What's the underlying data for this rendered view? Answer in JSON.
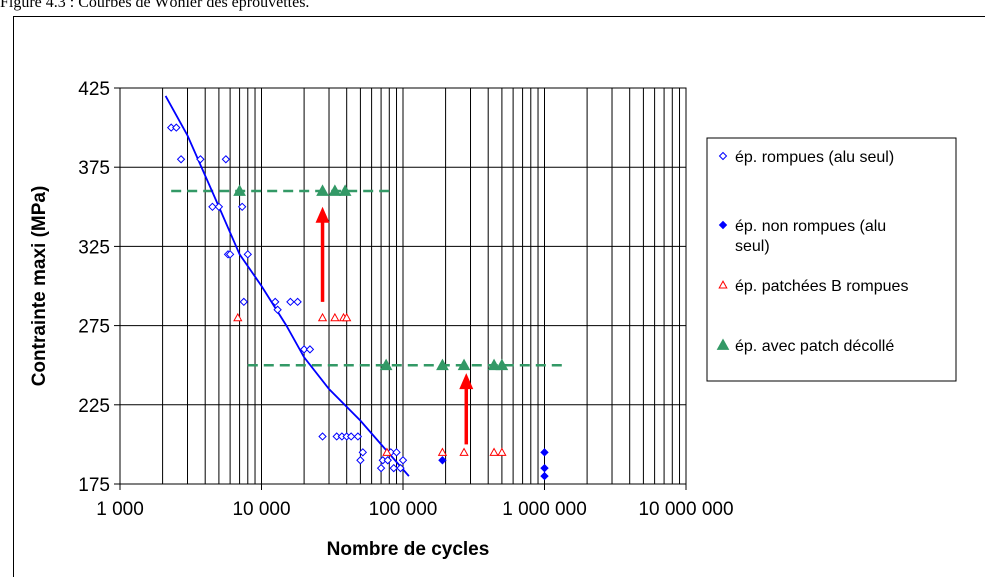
{
  "caption": "Figure 4.3 : Courbes de Wöhler des éprouvettes.",
  "chart_data": {
    "type": "scatter",
    "xlabel": "Nombre de cycles",
    "ylabel": "Contrainte maxi (MPa)",
    "x_scale": "log",
    "xlim": [
      1000,
      10000000
    ],
    "ylim": [
      175,
      425
    ],
    "y_ticks": [
      175,
      225,
      275,
      325,
      375,
      425
    ],
    "x_tick_labels": [
      "1 000",
      "10 000",
      "100 000",
      "1 000 000",
      "10 000 000"
    ],
    "grid": true,
    "legend_position": "right",
    "series": [
      {
        "name": "ép. rompues (alu seul)",
        "marker": "open-diamond",
        "color": "#0000ff",
        "points": [
          [
            2300,
            400
          ],
          [
            2500,
            400
          ],
          [
            2700,
            380
          ],
          [
            3700,
            380
          ],
          [
            4500,
            350
          ],
          [
            5000,
            350
          ],
          [
            5600,
            380
          ],
          [
            5800,
            320
          ],
          [
            6000,
            320
          ],
          [
            7300,
            350
          ],
          [
            7500,
            290
          ],
          [
            8000,
            320
          ],
          [
            12500,
            290
          ],
          [
            13000,
            285
          ],
          [
            16000,
            290
          ],
          [
            18000,
            290
          ],
          [
            20000,
            260
          ],
          [
            22000,
            260
          ],
          [
            27000,
            205
          ],
          [
            34000,
            205
          ],
          [
            37000,
            205
          ],
          [
            40000,
            205
          ],
          [
            43000,
            205
          ],
          [
            48000,
            205
          ],
          [
            50000,
            190
          ],
          [
            52000,
            195
          ],
          [
            70000,
            185
          ],
          [
            72000,
            190
          ],
          [
            78000,
            190
          ],
          [
            82000,
            195
          ],
          [
            86000,
            185
          ],
          [
            90000,
            195
          ],
          [
            96000,
            185
          ],
          [
            100000,
            190
          ]
        ]
      },
      {
        "name": "ép. non rompues (alu seul)",
        "marker": "filled-diamond",
        "color": "#0000ff",
        "points": [
          [
            190000,
            190
          ],
          [
            1000000,
            195
          ],
          [
            1000000,
            185
          ],
          [
            1000000,
            180
          ]
        ]
      },
      {
        "name": "ép. patchées B rompues",
        "marker": "open-triangle",
        "color": "#ff0000",
        "points": [
          [
            6800,
            280
          ],
          [
            27000,
            280
          ],
          [
            33000,
            280
          ],
          [
            38000,
            280
          ],
          [
            40000,
            280
          ],
          [
            77000,
            195
          ],
          [
            190000,
            195
          ],
          [
            270000,
            195
          ],
          [
            440000,
            195
          ],
          [
            500000,
            195
          ]
        ]
      },
      {
        "name": "ép. avec patch décollé",
        "marker": "filled-triangle",
        "color": "#339966",
        "points": [
          [
            7000,
            360
          ],
          [
            27000,
            360
          ],
          [
            33000,
            360
          ],
          [
            39000,
            360
          ],
          [
            76000,
            250
          ],
          [
            190000,
            250
          ],
          [
            270000,
            250
          ],
          [
            440000,
            250
          ],
          [
            500000,
            250
          ]
        ]
      }
    ],
    "trend_line": {
      "color": "#0000ff",
      "points": [
        [
          2100,
          420
        ],
        [
          3000,
          395
        ],
        [
          5000,
          350
        ],
        [
          7000,
          320
        ],
        [
          10000,
          300
        ],
        [
          15000,
          275
        ],
        [
          20000,
          255
        ],
        [
          30000,
          235
        ],
        [
          50000,
          215
        ],
        [
          70000,
          200
        ],
        [
          110000,
          180
        ]
      ]
    },
    "dashed_levels": [
      {
        "y": 360,
        "x_from": 2300,
        "x_to": 85000,
        "color": "#339966"
      },
      {
        "y": 250,
        "x_from": 8000,
        "x_to": 1350000,
        "color": "#339966"
      }
    ],
    "arrows": [
      {
        "x": 27000,
        "y_from": 290,
        "y_to": 350,
        "color": "#ff0000"
      },
      {
        "x": 280000,
        "y_from": 200,
        "y_to": 245,
        "color": "#ff0000"
      }
    ]
  }
}
